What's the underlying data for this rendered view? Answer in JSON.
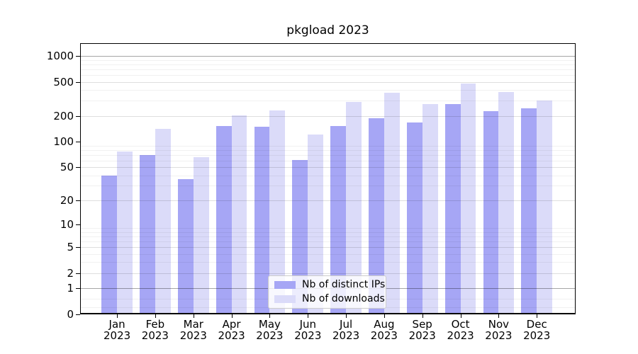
{
  "chart_data": {
    "type": "bar",
    "title": "pkgload 2023",
    "x_categories": [
      "Jan",
      "Feb",
      "Mar",
      "Apr",
      "May",
      "Jun",
      "Jul",
      "Aug",
      "Sep",
      "Oct",
      "Nov",
      "Dec"
    ],
    "x_year": "2023",
    "y_ticks": [
      0,
      1,
      2,
      5,
      10,
      20,
      50,
      100,
      200,
      500,
      1000
    ],
    "y_scale": "log10(value+1)",
    "ylim": [
      0,
      1400
    ],
    "grid": true,
    "legend": {
      "position": "lower center",
      "entries": [
        "Nb of distinct IPs",
        "Nb of downloads"
      ]
    },
    "series": [
      {
        "name": "Nb of distinct IPs",
        "color": "#a6a6f5",
        "values": [
          40,
          70,
          36,
          152,
          150,
          61,
          152,
          186,
          167,
          277,
          226,
          244
        ]
      },
      {
        "name": "Nb of downloads",
        "color": "#dbdbf9",
        "values": [
          77,
          142,
          65,
          203,
          230,
          121,
          292,
          370,
          275,
          480,
          376,
          300
        ]
      }
    ]
  }
}
